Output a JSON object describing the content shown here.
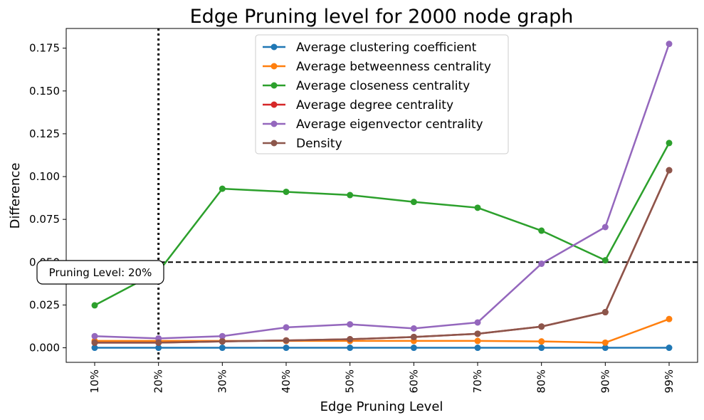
{
  "chart_data": {
    "type": "line",
    "title": "Edge Pruning level for 2000 node graph",
    "xlabel": "Edge Pruning Level",
    "ylabel": "Difference",
    "categories": [
      "10%",
      "20%",
      "30%",
      "40%",
      "50%",
      "60%",
      "70%",
      "80%",
      "90%",
      "99%"
    ],
    "ylim": [
      -0.0085,
      0.1865
    ],
    "yticks": [
      0.0,
      0.025,
      0.05,
      0.075,
      0.1,
      0.125,
      0.15,
      0.175
    ],
    "ytick_labels": [
      "0.000",
      "0.025",
      "0.050",
      "0.075",
      "0.100",
      "0.125",
      "0.150",
      "0.175"
    ],
    "grid": false,
    "legend_position": "upper center",
    "series": [
      {
        "name": "Average clustering coefficient",
        "color": "#1f77b4",
        "values": [
          0.0,
          0.0,
          0.0,
          0.0,
          0.0,
          0.0,
          0.0,
          0.0,
          0.0,
          0.0
        ]
      },
      {
        "name": "Average betweenness centrality",
        "color": "#ff7f0e",
        "values": [
          0.004,
          0.004,
          0.004,
          0.004,
          0.004,
          0.004,
          0.004,
          0.0037,
          0.003,
          0.0168
        ]
      },
      {
        "name": "Average closeness centrality",
        "color": "#2ca02c",
        "values": [
          0.0248,
          0.0445,
          0.0929,
          0.0911,
          0.0892,
          0.0852,
          0.0818,
          0.0684,
          0.0511,
          0.1196
        ]
      },
      {
        "name": "Average degree centrality",
        "color": "#d62728",
        "values": [
          0.003,
          0.003,
          0.0037,
          0.0043,
          0.005,
          0.0063,
          0.0082,
          0.0124,
          0.0208,
          0.1037
        ]
      },
      {
        "name": "Average eigenvector centrality",
        "color": "#9467bd",
        "values": [
          0.0068,
          0.0055,
          0.0068,
          0.0119,
          0.0137,
          0.0113,
          0.0148,
          0.0491,
          0.0705,
          0.1775
        ]
      },
      {
        "name": "Density",
        "color": "#8c564b",
        "values": [
          0.003,
          0.003,
          0.0037,
          0.0043,
          0.005,
          0.0063,
          0.0082,
          0.0124,
          0.0208,
          0.1037
        ]
      }
    ],
    "reference_lines": {
      "horizontal": {
        "y": 0.05,
        "style": "dashed",
        "color": "#000000"
      },
      "vertical": {
        "x": "20%",
        "style": "dotted",
        "color": "#000000"
      }
    },
    "annotation": {
      "text": "Pruning Level: 20%",
      "at": "20%",
      "y": 0.05
    }
  }
}
